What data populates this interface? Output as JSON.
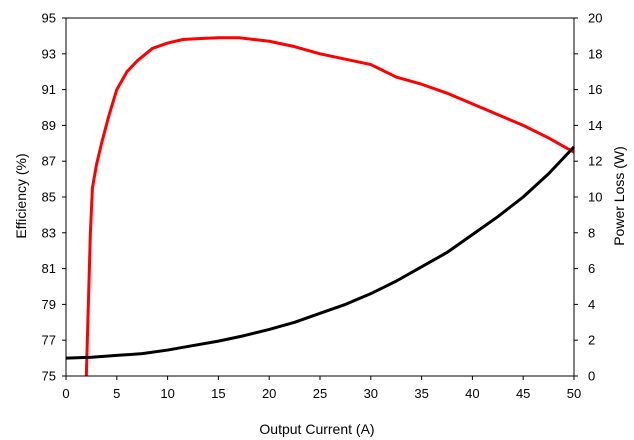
{
  "chart_data": {
    "type": "line",
    "title": "",
    "xlabel": "Output Current (A)",
    "ylabel_left": "Efficiency (%)",
    "ylabel_right": "Power Loss (W)",
    "xlim": [
      0,
      50
    ],
    "ylim_left": [
      75,
      95
    ],
    "ylim_right": [
      0,
      20
    ],
    "xticks": [
      0,
      5,
      10,
      15,
      20,
      25,
      30,
      35,
      40,
      45,
      50
    ],
    "yticks_left": [
      75,
      77,
      79,
      81,
      83,
      85,
      87,
      89,
      91,
      93,
      95
    ],
    "yticks_right": [
      0,
      2,
      4,
      6,
      8,
      10,
      12,
      14,
      16,
      18,
      20
    ],
    "grid": true,
    "legend": "none",
    "series": [
      {
        "axis": "left",
        "color": "#ff0000",
        "points": [
          [
            2.0,
            75.0
          ],
          [
            2.2,
            79.0
          ],
          [
            2.4,
            83.0
          ],
          [
            2.6,
            85.5
          ],
          [
            3.0,
            86.8
          ],
          [
            3.5,
            88.0
          ],
          [
            4.2,
            89.5
          ],
          [
            5.0,
            91.0
          ],
          [
            6.0,
            92.0
          ],
          [
            7.0,
            92.6
          ],
          [
            8.5,
            93.3
          ],
          [
            10.0,
            93.6
          ],
          [
            11.5,
            93.8
          ],
          [
            13.0,
            93.85
          ],
          [
            15.0,
            93.9
          ],
          [
            17.0,
            93.9
          ],
          [
            18.5,
            93.8
          ],
          [
            20.0,
            93.7
          ],
          [
            22.5,
            93.4
          ],
          [
            25.0,
            93.0
          ],
          [
            27.5,
            92.7
          ],
          [
            30.0,
            92.4
          ],
          [
            32.5,
            91.7
          ],
          [
            35.0,
            91.3
          ],
          [
            37.5,
            90.8
          ],
          [
            40.0,
            90.2
          ],
          [
            42.5,
            89.6
          ],
          [
            45.0,
            89.0
          ],
          [
            47.5,
            88.3
          ],
          [
            50.0,
            87.5
          ]
        ]
      },
      {
        "axis": "right",
        "color": "#000000",
        "points": [
          [
            0.0,
            1.0
          ],
          [
            2.5,
            1.05
          ],
          [
            5.0,
            1.15
          ],
          [
            7.5,
            1.25
          ],
          [
            10.0,
            1.45
          ],
          [
            12.5,
            1.7
          ],
          [
            15.0,
            1.95
          ],
          [
            17.5,
            2.25
          ],
          [
            20.0,
            2.6
          ],
          [
            22.5,
            3.0
          ],
          [
            25.0,
            3.5
          ],
          [
            27.5,
            4.0
          ],
          [
            30.0,
            4.6
          ],
          [
            32.5,
            5.3
          ],
          [
            35.0,
            6.1
          ],
          [
            37.5,
            6.9
          ],
          [
            40.0,
            7.9
          ],
          [
            42.5,
            8.9
          ],
          [
            45.0,
            10.0
          ],
          [
            47.5,
            11.3
          ],
          [
            50.0,
            12.8
          ]
        ]
      }
    ]
  }
}
